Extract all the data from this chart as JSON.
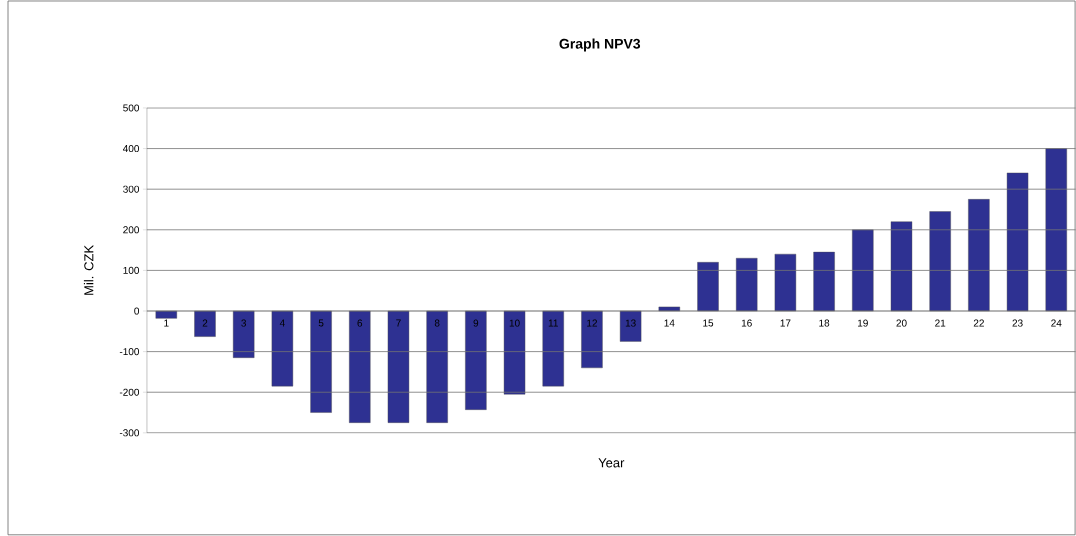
{
  "chart_data": {
    "type": "bar",
    "title": "Graph NPV3",
    "xlabel": "Year",
    "ylabel": "Mil. CZK",
    "categories": [
      "1",
      "2",
      "3",
      "4",
      "5",
      "6",
      "7",
      "8",
      "9",
      "10",
      "11",
      "12",
      "13",
      "14",
      "15",
      "16",
      "17",
      "18",
      "19",
      "20",
      "21",
      "22",
      "23",
      "24"
    ],
    "values": [
      -18,
      -63,
      -115,
      -185,
      -250,
      -275,
      -275,
      -275,
      -243,
      -205,
      -185,
      -140,
      -75,
      10,
      120,
      130,
      140,
      145,
      200,
      220,
      245,
      275,
      340,
      400
    ],
    "color": "#2e3192",
    "ylim": [
      -300,
      500
    ],
    "yticks": [
      -300,
      -200,
      -100,
      0,
      100,
      200,
      300,
      400,
      500
    ],
    "grid": "y"
  }
}
